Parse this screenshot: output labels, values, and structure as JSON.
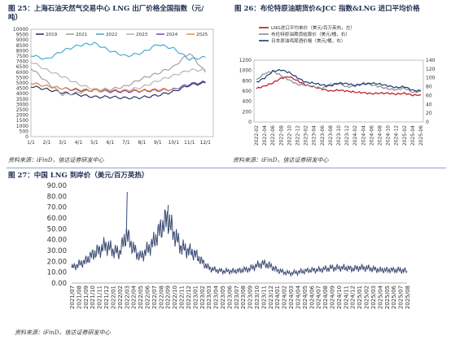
{
  "charts": {
    "c25": {
      "title": "图 25：上海石油天然气交易中心 LNG 出厂价格全国指数（元/吨）",
      "title_line1": "图 25：上海石油天然气交易中心 LNG 出厂价格全国指数（元/",
      "title_line2": "吨）",
      "source": "资料来源：iFinD，信达证券研发中心",
      "chart_data": {
        "type": "line",
        "x_labels": [
          "1/1",
          "2/1",
          "3/1",
          "4/1",
          "5/1",
          "6/1",
          "7/1",
          "8/1",
          "9/1",
          "10/1",
          "11/1",
          "12/1"
        ],
        "ylim": [
          0,
          10000
        ],
        "yticks": [
          0,
          500,
          1000,
          1500,
          2000,
          2500,
          3000,
          3500,
          4000,
          4500,
          5000,
          5500,
          6000,
          6500,
          7000,
          7500,
          8000,
          8500,
          9000,
          9500,
          10000
        ],
        "series": [
          {
            "name": "2019",
            "color": "#1a2b55",
            "values": [
              4700,
              4400,
              4100,
              3900,
              3700,
              3700,
              3600,
              3650,
              3850,
              4200,
              4800,
              5000
            ]
          },
          {
            "name": "2021",
            "color": "#9a9a9a",
            "values": [
              6400,
              5100,
              3900,
              4100,
              4400,
              4400,
              4700,
              5400,
              5900,
              6500,
              7800,
              6000
            ]
          },
          {
            "name": "2022",
            "color": "#3aa6c9",
            "values": [
              7600,
              7200,
              8000,
              8500,
              8700,
              8000,
              7500,
              7800,
              8600,
              8200,
              7200,
              7400
            ]
          },
          {
            "name": "2023",
            "color": "#b0b0b0",
            "values": [
              7000,
              6200,
              5600,
              4900,
              4400,
              4200,
              4300,
              4600,
              5200,
              5700,
              6200,
              6200
            ]
          },
          {
            "name": "2024",
            "color": "#7b3fb3",
            "values": [
              5000,
              4700,
              4500,
              4300,
              4300,
              4200,
              4200,
              4250,
              4300,
              4400,
              4900,
              5100
            ]
          },
          {
            "name": "2025",
            "color": "#f08c3a",
            "values": [
              5000,
              4700,
              4500,
              4400,
              4300,
              4300,
              4300,
              4300,
              4400,
              4400
            ]
          }
        ]
      }
    },
    "c26": {
      "title": "图 26：布伦特原油期货价&JCC 指数&LNG 进口平均价格",
      "source": "资料来源：iFinD，信达证券研发中心",
      "chart_data": {
        "type": "line",
        "x_labels": [
          "2022-02",
          "2022-04",
          "2022-06",
          "2022-08",
          "2022-10",
          "2022-12",
          "2023-02",
          "2023-04",
          "2023-06",
          "2023-08",
          "2023-10",
          "2023-12",
          "2024-02",
          "2024-04",
          "2024-06",
          "2024-08",
          "2024-10",
          "2024-12",
          "2025-02",
          "2025-04",
          "2025-06"
        ],
        "ylim_left": [
          0,
          1200
        ],
        "ylim_right": [
          0,
          140
        ],
        "yticks_left": [
          0,
          200,
          400,
          600,
          800,
          1000,
          1200
        ],
        "yticks_right": [
          0,
          20,
          40,
          60,
          80,
          100,
          120,
          140
        ],
        "series": [
          {
            "name": "LNG进口平均单价（美元/百万英热，左）",
            "color": "#c0101c",
            "axis": "left",
            "values": [
              650,
              700,
              760,
              850,
              880,
              800,
              720,
              680,
              640,
              600,
              620,
              600,
              580,
              570,
              550,
              560,
              560,
              540,
              560,
              520,
              530
            ]
          },
          {
            "name": "布伦特原油期货结算价（美元/桶，右）",
            "color": "#8a8a8a",
            "axis": "right",
            "values": [
              95,
              110,
              115,
              105,
              95,
              85,
              84,
              80,
              76,
              85,
              88,
              79,
              82,
              88,
              84,
              80,
              75,
              73,
              77,
              67,
              70
            ]
          },
          {
            "name": "日本原油鸡尾酒价格（美元/桶，右）",
            "color": "#1a3a7a",
            "axis": "right",
            "values": [
              90,
              100,
              115,
              118,
              112,
              100,
              90,
              88,
              84,
              82,
              88,
              87,
              83,
              86,
              88,
              86,
              82,
              78,
              80,
              72,
              70
            ]
          }
        ]
      }
    },
    "c27": {
      "title": "图 27：中国 LNG 到岸价（美元/百万英热）",
      "source": "资料来源：iFinD，信达证券研发中心",
      "chart_data": {
        "type": "line",
        "x_labels": [
          "2021/07",
          "2021/08",
          "2021/09",
          "2021/10",
          "2021/11",
          "2021/12",
          "2022/01",
          "2022/02",
          "2022/03",
          "2022/04",
          "2022/05",
          "2022/06",
          "2022/07",
          "2022/08",
          "2022/09",
          "2022/10",
          "2022/11",
          "2022/12",
          "2023/01",
          "2023/02",
          "2023/03",
          "2023/04",
          "2023/05",
          "2023/06",
          "2023/07",
          "2023/08",
          "2023/09",
          "2023/10",
          "2023/11",
          "2023/12",
          "2024/01",
          "2024/02",
          "2024/03",
          "2024/04",
          "2024/05",
          "2024/06",
          "2024/07",
          "2024/08",
          "2024/09",
          "2024/10",
          "2024/11",
          "2024/12",
          "2025/01",
          "2025/02",
          "2025/03",
          "2025/04",
          "2025/05",
          "2025/06",
          "2025/07",
          "2025/08"
        ],
        "ylim": [
          0,
          90
        ],
        "yticks": [
          0,
          10,
          20,
          30,
          40,
          50,
          60,
          70,
          80,
          90
        ],
        "ytick_labels": [
          "0.00",
          "10.00",
          "20.00",
          "30.00",
          "40.00",
          "50.00",
          "60.00",
          "70.00",
          "80.00",
          "90.00"
        ],
        "series": [
          {
            "name": "中国LNG到岸价",
            "color": "#3b4a73",
            "values": [
              14,
              17,
              20,
              26,
              30,
              35,
              30,
              28,
              45,
              32,
              24,
              30,
              38,
              50,
              60,
              45,
              33,
              30,
              27,
              20,
              14,
              12,
              11,
              11,
              11,
              12,
              13,
              16,
              18,
              16,
              12,
              10,
              9,
              10,
              11,
              12,
              12,
              13,
              14,
              14,
              14,
              13,
              14,
              14,
              13,
              12,
              12,
              12,
              12,
              11
            ]
          }
        ]
      }
    }
  }
}
